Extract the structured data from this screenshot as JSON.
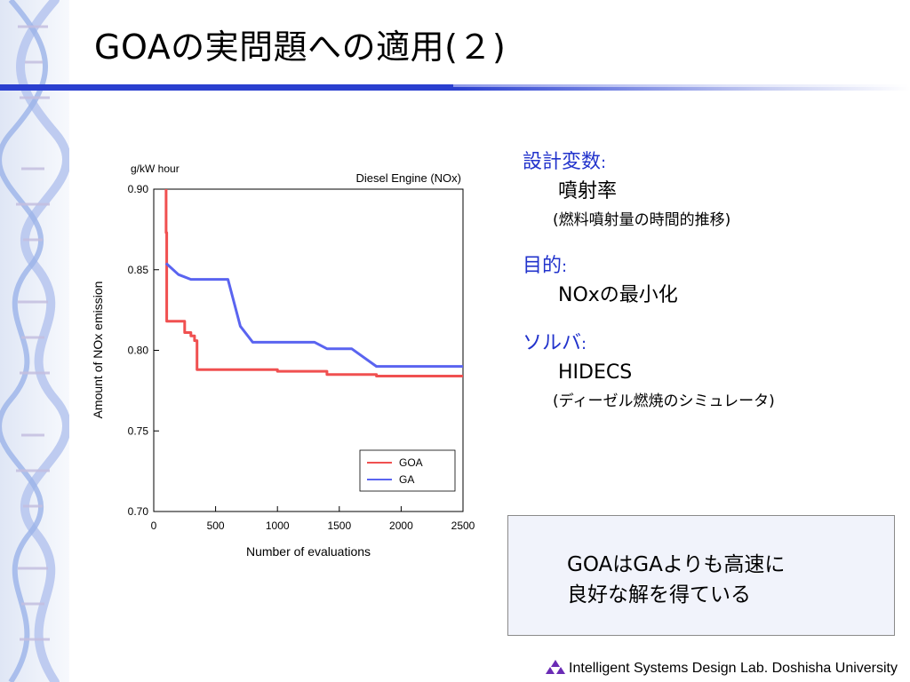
{
  "slide": {
    "title": "GOAの実問題への適用(２)",
    "footer": "Intelligent Systems Design Lab. Doshisha University"
  },
  "colors": {
    "accent": "#2233cc",
    "rule": "#2a3fcf",
    "goa": "#f05050",
    "ga": "#5a64f0"
  },
  "icons": [
    "dna-helix-decoration",
    "lab-logo-icon"
  ],
  "sections": [
    {
      "head": "設計変数",
      "colon": ":",
      "value": "噴射率",
      "note": "(燃料噴射量の時間的推移)"
    },
    {
      "head": "目的",
      "colon": ":",
      "value": "NOxの最小化",
      "note": ""
    },
    {
      "head": "ソルバ",
      "colon": ":",
      "value": "HIDECS",
      "note": "(ディーゼル燃焼のシミュレータ)"
    }
  ],
  "summary": {
    "line1": "GOAはGAよりも高速に",
    "line2": "良好な解を得ている"
  },
  "chart_data": {
    "type": "line",
    "title": "Diesel Engine (NOx)",
    "unit_label": "g/kW hour",
    "xlabel": "Number of evaluations",
    "ylabel": "Amount of NOx emission",
    "xlim": [
      0,
      2500
    ],
    "ylim": [
      0.7,
      0.9
    ],
    "xticks": [
      0,
      500,
      1000,
      1500,
      2000,
      2500
    ],
    "yticks": [
      0.7,
      0.75,
      0.8,
      0.85,
      0.9
    ],
    "ytick_labels": [
      "0.70",
      "0.75",
      "0.80",
      "0.85",
      "0.90"
    ],
    "grid": false,
    "legend_position": "bottom-right",
    "series": [
      {
        "name": "GOA",
        "color": "#f05050",
        "x": [
          100,
          100,
          105,
          105,
          250,
          250,
          300,
          300,
          330,
          330,
          350,
          350,
          1000,
          1000,
          1400,
          1400,
          1800,
          1800,
          2500
        ],
        "y": [
          0.9,
          0.873,
          0.873,
          0.818,
          0.818,
          0.811,
          0.811,
          0.809,
          0.809,
          0.806,
          0.806,
          0.788,
          0.788,
          0.787,
          0.787,
          0.785,
          0.785,
          0.784,
          0.784
        ]
      },
      {
        "name": "GA",
        "color": "#5a64f0",
        "x": [
          100,
          200,
          300,
          600,
          700,
          800,
          1300,
          1400,
          1600,
          1800,
          2500
        ],
        "y": [
          0.854,
          0.847,
          0.844,
          0.844,
          0.815,
          0.805,
          0.805,
          0.801,
          0.801,
          0.79,
          0.79
        ]
      }
    ]
  }
}
